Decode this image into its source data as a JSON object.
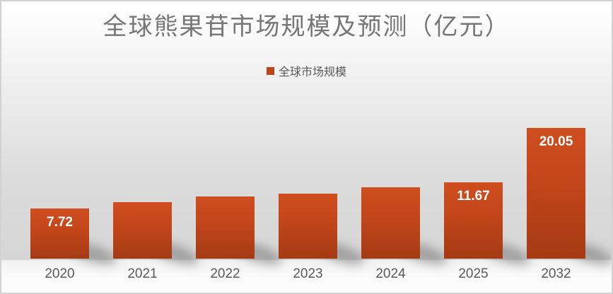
{
  "title": "全球熊果苷市场规模及预测（亿元）",
  "legend": {
    "label": "全球市场规模"
  },
  "chart_data": {
    "type": "bar",
    "title": "全球熊果苷市场规模及预测（亿元）",
    "categories": [
      "2020",
      "2021",
      "2022",
      "2023",
      "2024",
      "2025",
      "2032"
    ],
    "series": [
      {
        "name": "全球市场规模",
        "values": [
          7.72,
          8.7,
          9.5,
          10.0,
          10.9,
          11.67,
          20.05
        ]
      }
    ],
    "data_labels": [
      "7.72",
      "",
      "",
      "",
      "",
      "11.67",
      "20.05"
    ],
    "xlabel": "",
    "ylabel": "",
    "ylim": [
      0,
      20.05
    ],
    "grid": false,
    "legend_position": "top-center",
    "unit": "亿元"
  },
  "colors": {
    "bar_top": "#cf4e1f",
    "bar_bottom": "#a43b14",
    "legend_marker": "#bf4318",
    "title_text": "#767676",
    "axis_text": "#595959",
    "data_label_text": "#ffffff",
    "background_top": "#ffffff",
    "background_bottom": "#d6d6d6",
    "floor": "#fafafa"
  }
}
